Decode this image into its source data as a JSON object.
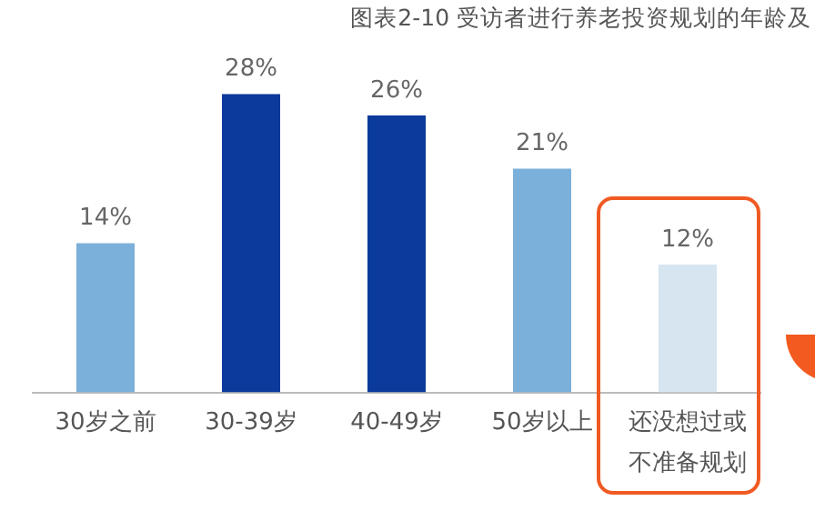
{
  "chart_data": {
    "type": "bar",
    "title": "图表2-10 受访者进行养老投资规划的年龄及",
    "categories": [
      "30岁之前",
      "30-39岁",
      "40-49岁",
      "50岁以上",
      "还没想过或不准备规划"
    ],
    "values": [
      14,
      28,
      26,
      21,
      12
    ],
    "colors": [
      "#7bb0da",
      "#0a3a9c",
      "#0a3a9c",
      "#7bb0da",
      "#d6e5f0"
    ],
    "value_labels": [
      "14%",
      "28%",
      "26%",
      "21%",
      "12%"
    ],
    "grid": false,
    "legend": false,
    "tick_labels": "x"
  }
}
